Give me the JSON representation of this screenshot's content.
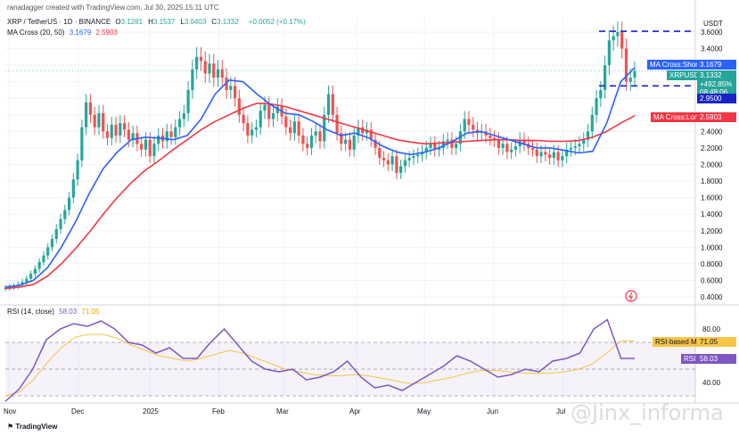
{
  "header": {
    "credit": "ranadagger created with TradingView.com, Jul 30, 2025 15:11 UTC",
    "symbol": "XRP / TetherUS · 1D · BINANCE",
    "ohlc": [
      {
        "k": "O",
        "v": "3.1281"
      },
      {
        "k": "H",
        "v": "3.1537"
      },
      {
        "k": "L",
        "v": "3.0403"
      },
      {
        "k": "C",
        "v": "3.1332"
      }
    ],
    "change": "+0.0052 (+0.17%)",
    "ma_label": "MA Cross (20, 50)",
    "ma_short_value": "3.1679",
    "ma_long_value": "2.5903",
    "rsi_label": "RSI (14, close)",
    "rsi_value": "58.03",
    "rsi_ma_value": "71.05"
  },
  "price_axis": {
    "currency": "USDT",
    "ticks": [
      "3.6000",
      "3.4000",
      "3.2000",
      "3.0000",
      "2.8000",
      "2.6000",
      "2.4000",
      "2.2000",
      "2.0000",
      "1.8000",
      "1.6000",
      "1.4000",
      "1.2000",
      "1.0000",
      "0.8000",
      "0.6000",
      "0.4000"
    ]
  },
  "rsi_axis": {
    "ticks": [
      "80.00",
      "40.00"
    ]
  },
  "time_axis": {
    "ticks": [
      "Nov",
      "Dec",
      "2025",
      "Feb",
      "Mar",
      "Apr",
      "May",
      "Jun",
      "Jul"
    ]
  },
  "tags": {
    "ma_short": "MA Cross:Short MA",
    "ma_short_val": "3.1679",
    "symbol": "XRPUSDT",
    "price": "3.1332",
    "pct": "+492.85%",
    "countdown": "08:48:06",
    "level": "2.9500",
    "ma_long": "MA Cross:Long MA",
    "ma_long_val": "2.5903",
    "rsi_ma": "RSI-based MA",
    "rsi_ma_val": "71.05",
    "rsi": "RSI",
    "rsi_val": "58.03"
  },
  "brand": "TradingView",
  "watermark": "@Jinx_informa",
  "colors": {
    "up": "#26a69a",
    "down": "#ef5350",
    "short_ma": "#2962ff",
    "long_ma": "#f23645",
    "rsi": "#7e57c2",
    "rsi_ma": "#f7c548",
    "level": "#1a23c8"
  },
  "chart_data": {
    "type": "candlestick",
    "y_min": 0.4,
    "y_max": 3.6,
    "level_lines": [
      3.61,
      2.95
    ],
    "closes": [
      0.51,
      0.52,
      0.53,
      0.55,
      0.58,
      0.62,
      0.68,
      0.74,
      0.82,
      0.9,
      1.0,
      1.1,
      1.22,
      1.34,
      1.45,
      1.6,
      1.82,
      2.05,
      2.45,
      2.75,
      2.6,
      2.45,
      2.62,
      2.4,
      2.32,
      2.48,
      2.35,
      2.5,
      2.42,
      2.3,
      2.38,
      2.25,
      2.18,
      2.3,
      2.1,
      2.25,
      2.35,
      2.28,
      2.4,
      2.33,
      2.45,
      2.55,
      2.62,
      2.9,
      3.15,
      3.3,
      3.25,
      3.1,
      3.22,
      3.05,
      3.15,
      3.05,
      2.9,
      2.95,
      2.8,
      2.6,
      2.5,
      2.35,
      2.42,
      2.45,
      2.65,
      2.72,
      2.55,
      2.62,
      2.7,
      2.58,
      2.45,
      2.38,
      2.52,
      2.35,
      2.25,
      2.2,
      2.35,
      2.4,
      2.28,
      2.6,
      2.85,
      2.6,
      2.38,
      2.25,
      2.3,
      2.18,
      2.35,
      2.45,
      2.38,
      2.42,
      2.3,
      2.2,
      2.08,
      2.05,
      2.0,
      2.1,
      1.9,
      1.98,
      2.05,
      2.08,
      2.1,
      2.12,
      2.15,
      2.2,
      2.25,
      2.18,
      2.2,
      2.28,
      2.3,
      2.2,
      2.25,
      2.4,
      2.55,
      2.48,
      2.42,
      2.38,
      2.4,
      2.35,
      2.32,
      2.3,
      2.2,
      2.25,
      2.15,
      2.18,
      2.22,
      2.3,
      2.25,
      2.2,
      2.18,
      2.1,
      2.15,
      2.12,
      2.08,
      2.15,
      2.05,
      2.1,
      2.18,
      2.2,
      2.22,
      2.25,
      2.3,
      2.4,
      2.6,
      2.8,
      2.9,
      3.2,
      3.5,
      3.55,
      3.6,
      3.4,
      3.0,
      3.05,
      3.13
    ],
    "short_ma": [
      0.52,
      0.54,
      0.6,
      0.75,
      1.0,
      1.3,
      1.65,
      1.95,
      2.15,
      2.3,
      2.33,
      2.32,
      2.3,
      2.35,
      2.55,
      2.85,
      3.02,
      3.0,
      2.85,
      2.72,
      2.62,
      2.6,
      2.52,
      2.42,
      2.35,
      2.38,
      2.32,
      2.22,
      2.15,
      2.12,
      2.15,
      2.2,
      2.28,
      2.38,
      2.4,
      2.35,
      2.3,
      2.25,
      2.2,
      2.2,
      2.17,
      2.14,
      2.16,
      2.5,
      3.0,
      3.17
    ],
    "long_ma": [
      0.5,
      0.52,
      0.55,
      0.65,
      0.8,
      0.98,
      1.18,
      1.4,
      1.6,
      1.78,
      1.93,
      2.05,
      2.18,
      2.3,
      2.42,
      2.52,
      2.6,
      2.68,
      2.74,
      2.73,
      2.7,
      2.65,
      2.6,
      2.55,
      2.5,
      2.45,
      2.4,
      2.35,
      2.3,
      2.27,
      2.25,
      2.26,
      2.27,
      2.28,
      2.29,
      2.3,
      2.3,
      2.29,
      2.29,
      2.28,
      2.28,
      2.29,
      2.33,
      2.4,
      2.5,
      2.59
    ],
    "rsi": [
      26,
      35,
      50,
      72,
      80,
      84,
      82,
      86,
      80,
      70,
      68,
      62,
      66,
      58,
      58,
      70,
      80,
      68,
      56,
      50,
      48,
      50,
      42,
      44,
      48,
      56,
      44,
      36,
      38,
      34,
      40,
      46,
      52,
      60,
      56,
      50,
      44,
      46,
      50,
      48,
      56,
      58,
      62,
      80,
      87,
      58,
      58
    ],
    "rsi_ma": [
      30,
      33,
      42,
      55,
      66,
      74,
      76,
      76,
      73,
      68,
      64,
      60,
      58,
      56,
      58,
      61,
      64,
      62,
      58,
      54,
      50,
      48,
      46,
      45,
      45,
      46,
      45,
      43,
      41,
      39,
      40,
      42,
      44,
      47,
      49,
      49,
      48,
      47,
      47,
      47,
      48,
      50,
      54,
      62,
      71,
      71
    ],
    "x_labels": [
      "Nov",
      "Dec",
      "2025",
      "Feb",
      "Mar",
      "Apr",
      "May",
      "Jun",
      "Jul"
    ]
  }
}
